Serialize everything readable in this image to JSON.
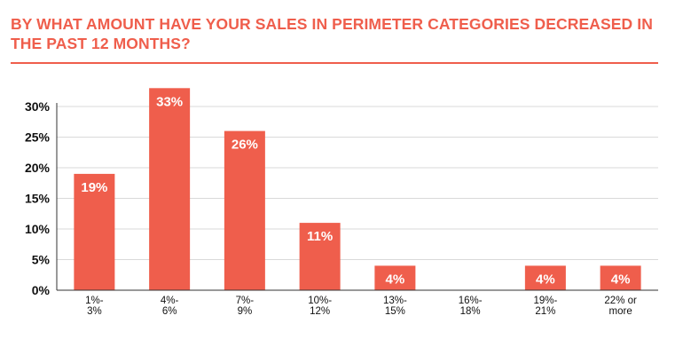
{
  "chart_data": {
    "type": "bar",
    "title": "BY WHAT AMOUNT HAVE YOUR SALES IN PERIMETER CATEGORIES DECREASED IN THE PAST 12 MONTHS?",
    "categories": [
      [
        "1%-",
        "3%"
      ],
      [
        "4%-",
        "6%"
      ],
      [
        "7%-",
        "9%"
      ],
      [
        "10%-",
        "12%"
      ],
      [
        "13%-",
        "15%"
      ],
      [
        "16%-",
        "18%"
      ],
      [
        "19%-",
        "21%"
      ],
      [
        "22% or",
        "more"
      ]
    ],
    "values": [
      19,
      33,
      26,
      11,
      4,
      0,
      4,
      4
    ],
    "data_labels": [
      "19%",
      "33%",
      "26%",
      "11%",
      "4%",
      "",
      "4%",
      "4%"
    ],
    "yticks": [
      0,
      5,
      10,
      15,
      20,
      25,
      30
    ],
    "ytick_labels": [
      "0%",
      "5%",
      "10%",
      "15%",
      "20%",
      "25%",
      "30%"
    ],
    "ylim": [
      0,
      30
    ],
    "grid": true,
    "colors": {
      "bar": "#ef5e4c",
      "grid": "#d9d9d9",
      "axis": "#333333",
      "title": "#ef5e4c"
    }
  }
}
